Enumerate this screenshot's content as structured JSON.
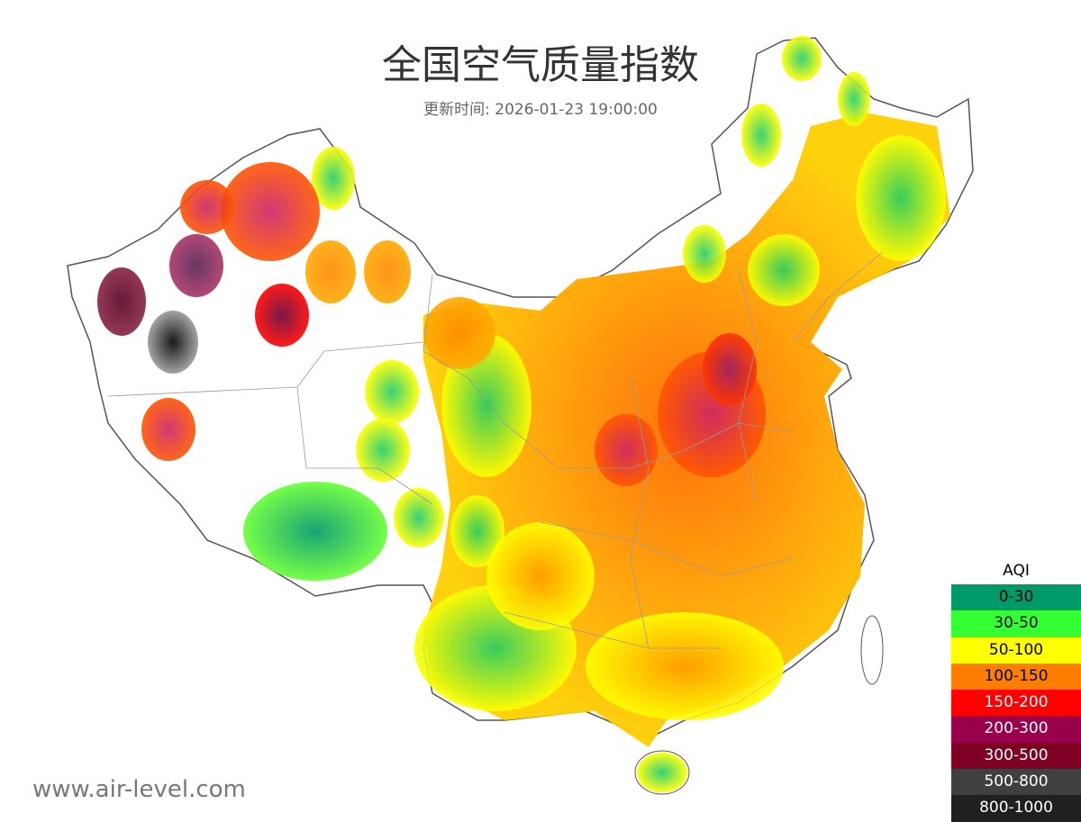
{
  "header": {
    "title": "全国空气质量指数",
    "subtitle": "更新时间: 2026-01-23 19:00:00"
  },
  "legend": {
    "title": "AQI",
    "items": [
      {
        "label": "0-30",
        "color": "#00996a",
        "text_color": "#000000"
      },
      {
        "label": "30-50",
        "color": "#33ff33",
        "text_color": "#000000"
      },
      {
        "label": "50-100",
        "color": "#ffff00",
        "text_color": "#000000"
      },
      {
        "label": "100-150",
        "color": "#ff7e00",
        "text_color": "#000000"
      },
      {
        "label": "150-200",
        "color": "#ff0000",
        "text_color": "#ffffff"
      },
      {
        "label": "200-300",
        "color": "#99004c",
        "text_color": "#ffffff"
      },
      {
        "label": "300-500",
        "color": "#7e0023",
        "text_color": "#ffffff"
      },
      {
        "label": "500-800",
        "color": "#404040",
        "text_color": "#ffffff"
      },
      {
        "label": "800-1000",
        "color": "#202020",
        "text_color": "#ffffff"
      }
    ]
  },
  "watermark": "www.air-level.com"
}
